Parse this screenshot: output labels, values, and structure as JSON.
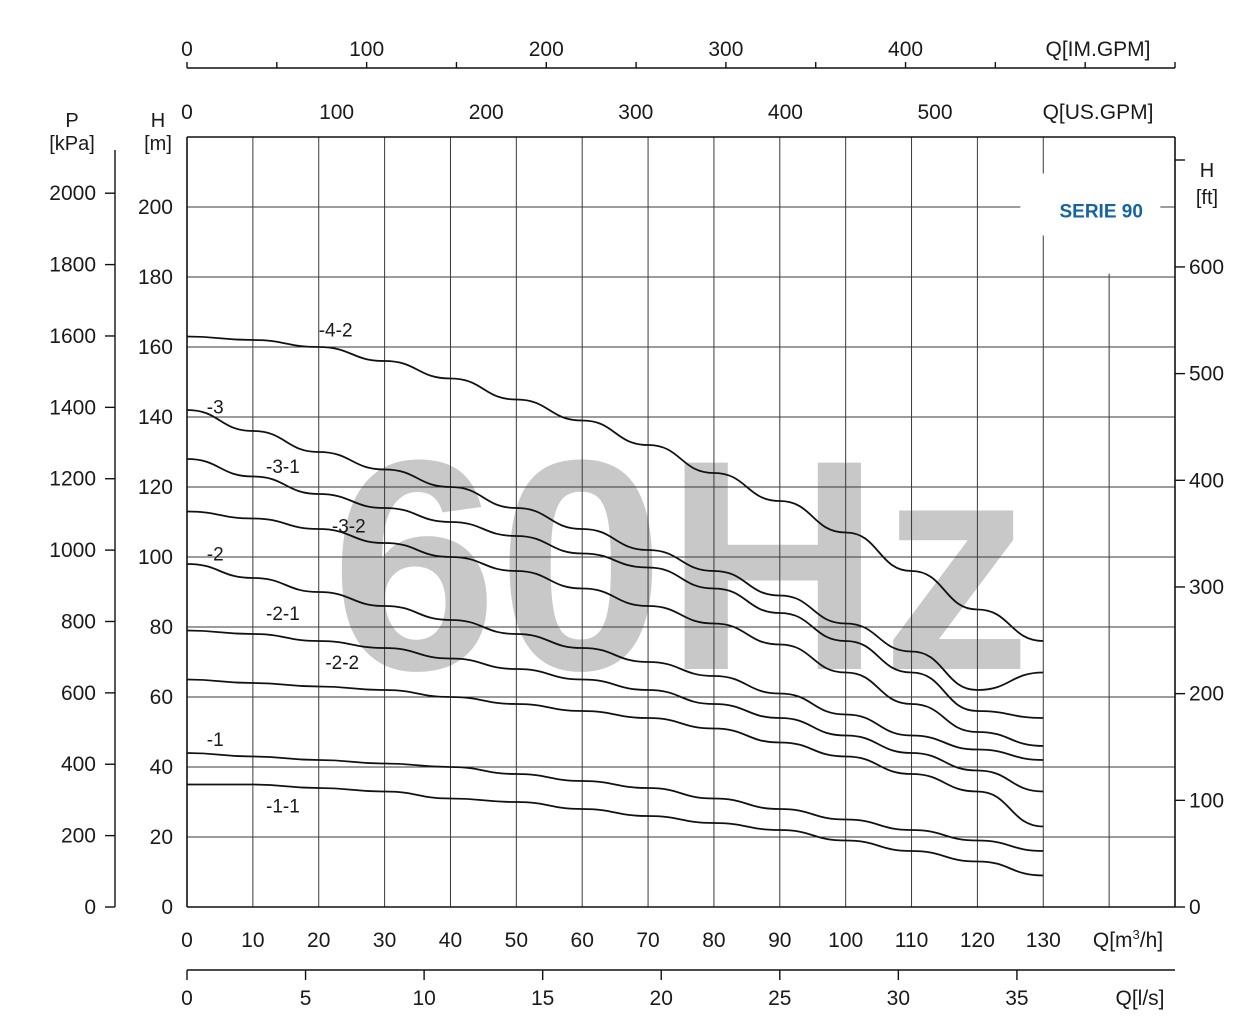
{
  "chart_data": {
    "type": "line",
    "watermark": "60Hz",
    "badge": "SERIE 90",
    "axes": {
      "x_m3h": {
        "label": "Q[m³/h]",
        "range": [
          0,
          150
        ],
        "ticks": [
          0,
          10,
          20,
          30,
          40,
          50,
          60,
          70,
          80,
          90,
          100,
          110,
          120,
          130
        ]
      },
      "x_ls": {
        "label": "Q[l/s]",
        "range": [
          0,
          41.667
        ],
        "ticks": [
          0,
          5,
          10,
          15,
          20,
          25,
          30,
          35
        ]
      },
      "x_usgpm": {
        "label": "Q[US.GPM]",
        "range": [
          0,
          660.4
        ],
        "ticks": [
          0,
          100,
          200,
          300,
          400,
          500
        ]
      },
      "x_imgpm": {
        "label": "Q[IM.GPM]",
        "range": [
          0,
          550
        ],
        "ticks": [
          0,
          100,
          200,
          300,
          400
        ]
      },
      "y_m": {
        "label_top": "H",
        "label_bottom": "[m]",
        "range": [
          0,
          220
        ],
        "ticks": [
          0,
          20,
          40,
          60,
          80,
          100,
          120,
          140,
          160,
          180,
          200
        ]
      },
      "y_kpa": {
        "label_top": "P",
        "label_bottom": "[kPa]",
        "range": [
          0,
          2157.5
        ],
        "ticks": [
          0,
          200,
          400,
          600,
          800,
          1000,
          1200,
          1400,
          1600,
          1800,
          2000
        ]
      },
      "y_ft": {
        "label_top": "H",
        "label_bottom": "[ft]",
        "range": [
          0,
          721.8
        ],
        "ticks": [
          0,
          100,
          200,
          300,
          400,
          500,
          600
        ]
      }
    },
    "grid": true,
    "series": [
      {
        "name": "-4-2",
        "label_at": [
          20,
          163
        ],
        "x": [
          0,
          10,
          20,
          30,
          40,
          50,
          60,
          70,
          80,
          90,
          100,
          110,
          120,
          130
        ],
        "y": [
          163,
          162,
          160,
          156,
          151,
          145,
          139,
          132,
          124,
          116,
          107,
          96,
          85,
          76
        ]
      },
      {
        "name": "-3",
        "label_at": [
          3,
          141
        ],
        "x": [
          0,
          10,
          20,
          30,
          40,
          50,
          60,
          70,
          80,
          90,
          100,
          110,
          120,
          130
        ],
        "y": [
          142,
          136,
          130,
          125,
          120,
          114,
          108,
          102,
          96,
          89,
          81,
          73,
          62,
          67
        ]
      },
      {
        "name": "-3-1",
        "label_at": [
          12,
          124
        ],
        "x": [
          0,
          10,
          20,
          30,
          40,
          50,
          60,
          70,
          80,
          90,
          100,
          110,
          120,
          130
        ],
        "y": [
          128,
          123,
          118,
          114,
          110,
          106,
          101,
          97,
          91,
          84,
          76,
          67,
          56,
          54
        ]
      },
      {
        "name": "-3-2",
        "label_at": [
          22,
          107
        ],
        "x": [
          0,
          10,
          20,
          30,
          40,
          50,
          60,
          70,
          80,
          90,
          100,
          110,
          120,
          130
        ],
        "y": [
          113,
          111,
          108,
          104,
          100,
          96,
          91,
          86,
          81,
          75,
          67,
          58,
          50,
          46
        ]
      },
      {
        "name": "-2",
        "label_at": [
          3,
          99
        ],
        "x": [
          0,
          10,
          20,
          30,
          40,
          50,
          60,
          70,
          80,
          90,
          100,
          110,
          120,
          130
        ],
        "y": [
          98,
          94,
          90,
          86,
          82,
          78,
          74,
          70,
          66,
          61,
          55,
          49,
          45,
          42
        ]
      },
      {
        "name": "-2-1",
        "label_at": [
          12,
          82
        ],
        "x": [
          0,
          10,
          20,
          30,
          40,
          50,
          60,
          70,
          80,
          90,
          100,
          110,
          120,
          130
        ],
        "y": [
          79,
          78,
          76,
          74,
          71,
          68,
          65,
          62,
          58,
          54,
          49,
          44,
          39,
          33
        ]
      },
      {
        "name": "-2-2",
        "label_at": [
          21,
          68
        ],
        "x": [
          0,
          10,
          20,
          30,
          40,
          50,
          60,
          70,
          80,
          90,
          100,
          110,
          120,
          130
        ],
        "y": [
          65,
          64,
          63,
          62,
          60,
          58,
          56,
          54,
          51,
          47,
          43,
          38,
          33,
          23
        ]
      },
      {
        "name": "-1",
        "label_at": [
          3,
          46
        ],
        "x": [
          0,
          10,
          20,
          30,
          40,
          50,
          60,
          70,
          80,
          90,
          100,
          110,
          120,
          130
        ],
        "y": [
          44,
          43,
          42,
          41,
          40,
          38,
          36,
          34,
          31,
          28,
          25,
          22,
          19,
          16
        ]
      },
      {
        "name": "-1-1",
        "label_at": [
          12,
          27
        ],
        "x": [
          0,
          10,
          20,
          30,
          40,
          50,
          60,
          70,
          80,
          90,
          100,
          110,
          120,
          130
        ],
        "y": [
          35,
          35,
          34,
          33,
          31,
          30,
          28,
          26,
          24,
          22,
          19,
          16,
          13,
          9
        ]
      }
    ]
  }
}
